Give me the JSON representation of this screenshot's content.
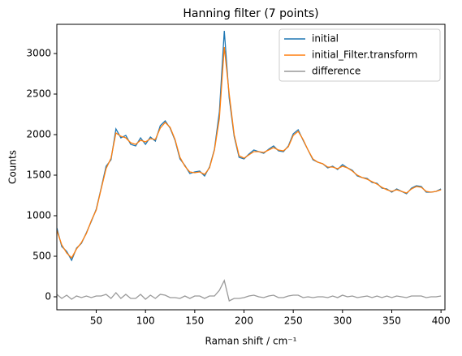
{
  "chart_data": {
    "type": "line",
    "title": "Hanning filter (7 points)",
    "xlabel": "Raman shift / cm⁻¹",
    "ylabel": "Counts",
    "x": [
      10,
      15,
      20,
      25,
      30,
      35,
      40,
      45,
      50,
      55,
      60,
      65,
      70,
      75,
      80,
      85,
      90,
      95,
      100,
      105,
      110,
      115,
      120,
      125,
      130,
      135,
      140,
      145,
      150,
      155,
      160,
      165,
      170,
      175,
      180,
      185,
      190,
      195,
      200,
      205,
      210,
      215,
      220,
      225,
      230,
      235,
      240,
      245,
      250,
      255,
      260,
      265,
      270,
      275,
      280,
      285,
      290,
      295,
      300,
      305,
      310,
      315,
      320,
      325,
      330,
      335,
      340,
      345,
      350,
      355,
      360,
      365,
      370,
      375,
      380,
      385,
      390,
      395,
      400
    ],
    "series": [
      {
        "name": "initial",
        "color": "#1f77b4",
        "values": [
          850,
          620,
          560,
          450,
          600,
          660,
          790,
          930,
          1080,
          1340,
          1610,
          1690,
          2070,
          1960,
          1990,
          1880,
          1860,
          1960,
          1880,
          1970,
          1920,
          2110,
          2170,
          2080,
          1930,
          1700,
          1620,
          1520,
          1540,
          1550,
          1490,
          1600,
          1820,
          2280,
          3280,
          2450,
          1980,
          1720,
          1700,
          1760,
          1810,
          1790,
          1770,
          1820,
          1860,
          1800,
          1790,
          1860,
          2010,
          2060,
          1930,
          1810,
          1690,
          1660,
          1640,
          1590,
          1610,
          1570,
          1630,
          1590,
          1560,
          1490,
          1470,
          1460,
          1410,
          1400,
          1340,
          1330,
          1290,
          1330,
          1300,
          1270,
          1340,
          1370,
          1360,
          1290,
          1290,
          1300,
          1330
        ]
      },
      {
        "name": "initial_Filter.transform",
        "color": "#ff7f0e",
        "values": [
          820,
          640,
          540,
          480,
          590,
          670,
          780,
          940,
          1070,
          1330,
          1580,
          1710,
          2020,
          1980,
          1960,
          1900,
          1880,
          1930,
          1910,
          1950,
          1940,
          2080,
          2150,
          2090,
          1940,
          1720,
          1610,
          1540,
          1530,
          1540,
          1510,
          1590,
          1810,
          2200,
          3080,
          2500,
          2000,
          1740,
          1710,
          1750,
          1790,
          1790,
          1780,
          1810,
          1840,
          1810,
          1800,
          1850,
          1990,
          2040,
          1940,
          1810,
          1700,
          1660,
          1640,
          1600,
          1600,
          1580,
          1610,
          1590,
          1550,
          1500,
          1470,
          1450,
          1420,
          1390,
          1350,
          1320,
          1300,
          1320,
          1300,
          1280,
          1330,
          1360,
          1350,
          1300,
          1290,
          1300,
          1320
        ]
      },
      {
        "name": "difference",
        "color": "#999999",
        "values": [
          30,
          -20,
          20,
          -30,
          10,
          -10,
          10,
          -10,
          10,
          10,
          30,
          -20,
          50,
          -20,
          30,
          -20,
          -20,
          30,
          -30,
          20,
          -20,
          30,
          20,
          -10,
          -10,
          -20,
          10,
          -20,
          10,
          10,
          -20,
          10,
          10,
          80,
          200,
          -50,
          -20,
          -20,
          -10,
          10,
          20,
          0,
          -10,
          10,
          20,
          -10,
          -10,
          10,
          20,
          20,
          -10,
          0,
          -10,
          0,
          0,
          -10,
          10,
          -10,
          20,
          0,
          10,
          -10,
          0,
          10,
          -10,
          10,
          -10,
          10,
          -10,
          10,
          0,
          -10,
          10,
          10,
          10,
          -10,
          0,
          0,
          10
        ]
      }
    ],
    "xlim": [
      10,
      404
    ],
    "ylim": [
      -160,
      3360
    ],
    "xticks": [
      50,
      100,
      150,
      200,
      250,
      300,
      350,
      400
    ],
    "yticks": [
      0,
      500,
      1000,
      1500,
      2000,
      2500,
      3000
    ],
    "grid": false,
    "legend": "upper right"
  }
}
